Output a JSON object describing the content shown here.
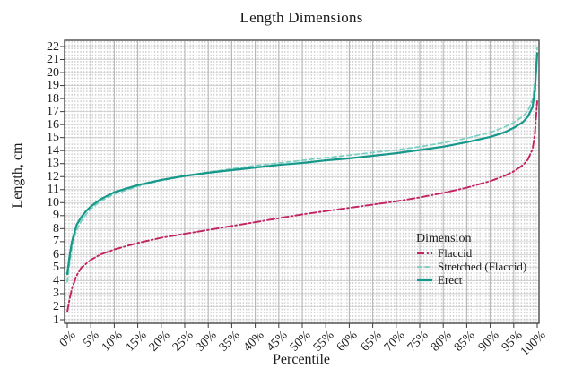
{
  "figure": {
    "title": "Length Dimensions",
    "x_axis_label": "Percentile",
    "y_axis_label": "Length, cm"
  },
  "legend": {
    "title": "Dimension"
  },
  "chart_data": {
    "type": "line",
    "title": "Length Dimensions",
    "xlabel": "Percentile",
    "ylabel": "Length, cm",
    "xlim": [
      0,
      100
    ],
    "ylim": [
      1,
      22
    ],
    "grid": true,
    "x_ticks": [
      "0%",
      "5%",
      "10%",
      "15%",
      "20%",
      "25%",
      "30%",
      "35%",
      "40%",
      "45%",
      "50%",
      "55%",
      "60%",
      "65%",
      "70%",
      "75%",
      "80%",
      "85%",
      "90%",
      "95%",
      "100%"
    ],
    "y_ticks": [
      22,
      21,
      20,
      19,
      18,
      17,
      16,
      15,
      14,
      13,
      12,
      11,
      10,
      9,
      8,
      7,
      6,
      5,
      4,
      3,
      2,
      1
    ],
    "legend_title": "Dimension",
    "legend_position": "lower right inside",
    "series": [
      {
        "name": "Flaccid",
        "color": "#c32361",
        "style": "dash-dot",
        "points": [
          [
            0,
            1.6
          ],
          [
            0.5,
            2.6
          ],
          [
            1,
            3.4
          ],
          [
            2,
            4.4
          ],
          [
            3,
            5.0
          ],
          [
            4,
            5.3
          ],
          [
            5,
            5.6
          ],
          [
            7,
            6.0
          ],
          [
            10,
            6.4
          ],
          [
            15,
            6.9
          ],
          [
            20,
            7.3
          ],
          [
            25,
            7.6
          ],
          [
            30,
            7.9
          ],
          [
            35,
            8.2
          ],
          [
            40,
            8.5
          ],
          [
            45,
            8.8
          ],
          [
            50,
            9.1
          ],
          [
            55,
            9.35
          ],
          [
            60,
            9.6
          ],
          [
            65,
            9.85
          ],
          [
            70,
            10.1
          ],
          [
            75,
            10.4
          ],
          [
            80,
            10.75
          ],
          [
            85,
            11.15
          ],
          [
            90,
            11.65
          ],
          [
            93,
            12.05
          ],
          [
            95,
            12.4
          ],
          [
            97,
            12.9
          ],
          [
            98,
            13.3
          ],
          [
            99,
            14.1
          ],
          [
            99.5,
            15.3
          ],
          [
            100,
            17.8
          ]
        ]
      },
      {
        "name": "Stretched (Flaccid)",
        "color": "#79d0c4",
        "style": "dashed",
        "points": [
          [
            0,
            3.9
          ],
          [
            0.5,
            5.3
          ],
          [
            1,
            6.6
          ],
          [
            2,
            7.9
          ],
          [
            3,
            8.6
          ],
          [
            4,
            9.1
          ],
          [
            5,
            9.5
          ],
          [
            7,
            10.1
          ],
          [
            10,
            10.65
          ],
          [
            15,
            11.25
          ],
          [
            20,
            11.7
          ],
          [
            25,
            12.05
          ],
          [
            30,
            12.35
          ],
          [
            35,
            12.6
          ],
          [
            40,
            12.85
          ],
          [
            45,
            13.05
          ],
          [
            50,
            13.25
          ],
          [
            55,
            13.45
          ],
          [
            60,
            13.65
          ],
          [
            65,
            13.85
          ],
          [
            70,
            14.05
          ],
          [
            75,
            14.3
          ],
          [
            80,
            14.6
          ],
          [
            85,
            14.95
          ],
          [
            90,
            15.4
          ],
          [
            93,
            15.8
          ],
          [
            95,
            16.15
          ],
          [
            97,
            16.65
          ],
          [
            98,
            17.05
          ],
          [
            99,
            17.9
          ],
          [
            99.5,
            19.2
          ],
          [
            100,
            21.9
          ]
        ]
      },
      {
        "name": "Erect",
        "color": "#16988a",
        "style": "solid",
        "points": [
          [
            0,
            4.5
          ],
          [
            0.5,
            5.9
          ],
          [
            1,
            7.0
          ],
          [
            2,
            8.3
          ],
          [
            3,
            8.9
          ],
          [
            4,
            9.35
          ],
          [
            5,
            9.7
          ],
          [
            7,
            10.25
          ],
          [
            10,
            10.8
          ],
          [
            15,
            11.35
          ],
          [
            20,
            11.75
          ],
          [
            25,
            12.05
          ],
          [
            30,
            12.3
          ],
          [
            35,
            12.5
          ],
          [
            40,
            12.7
          ],
          [
            45,
            12.9
          ],
          [
            50,
            13.05
          ],
          [
            55,
            13.25
          ],
          [
            60,
            13.4
          ],
          [
            65,
            13.6
          ],
          [
            70,
            13.8
          ],
          [
            75,
            14.05
          ],
          [
            80,
            14.3
          ],
          [
            85,
            14.65
          ],
          [
            90,
            15.05
          ],
          [
            93,
            15.4
          ],
          [
            95,
            15.75
          ],
          [
            97,
            16.2
          ],
          [
            98,
            16.6
          ],
          [
            99,
            17.35
          ],
          [
            99.5,
            18.6
          ],
          [
            100,
            21.5
          ]
        ]
      }
    ],
    "colors": {
      "frame": "#3a3a3a",
      "grid_vertical": "#b2b2b2",
      "grid_horizontal": "#cccccc",
      "grid_dots": "#cfcfcf"
    }
  }
}
